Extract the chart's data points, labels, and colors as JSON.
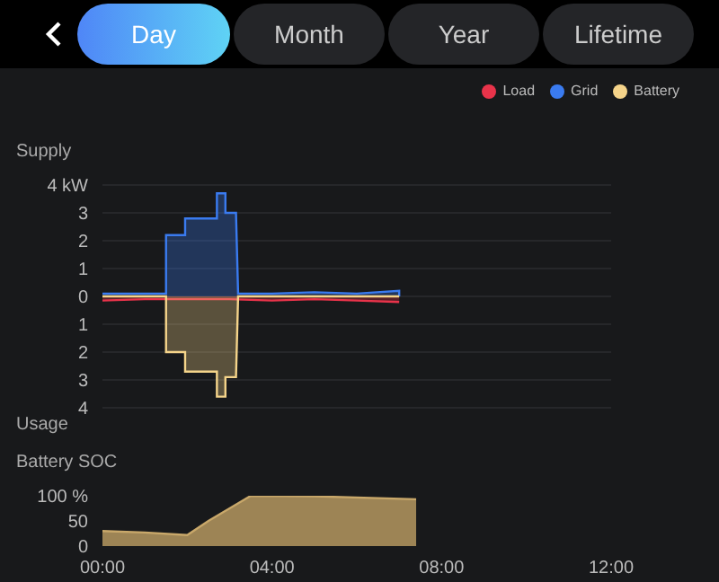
{
  "chart_data": [
    {
      "type": "other",
      "categories": [
        "Day",
        "Month",
        "Year",
        "Lifetime"
      ]
    },
    {
      "type": "area",
      "ylabel": "Supply",
      "annotations": [
        "Usage"
      ],
      "legend": "top right",
      "grid": "y",
      "tick_labels": "y",
      "xlim": [
        0,
        12
      ],
      "ylim": [
        -4,
        4
      ],
      "yticks": [
        {
          "value": -4,
          "label": "4"
        },
        {
          "value": -3,
          "label": "3"
        },
        {
          "value": -2,
          "label": "2"
        },
        {
          "value": -1,
          "label": "1"
        },
        0,
        1,
        2,
        3,
        {
          "value": 4,
          "label": "4 kW"
        }
      ],
      "series": [
        {
          "name": "Load",
          "color": "#e8334a",
          "x": [
            0,
            1,
            2,
            3,
            4,
            5,
            6,
            7
          ],
          "values": [
            -0.15,
            -0.1,
            -0.1,
            -0.1,
            -0.15,
            -0.1,
            -0.15,
            -0.2
          ]
        },
        {
          "name": "Grid",
          "color": "#3a7bf0",
          "x": [
            0,
            0.5,
            1,
            1.5,
            1.5,
            1.95,
            1.95,
            2.7,
            2.7,
            2.9,
            2.9,
            3.15,
            3.2,
            4,
            5,
            6,
            7,
            7
          ],
          "values": [
            0.1,
            0.1,
            0.1,
            0.1,
            2.2,
            2.2,
            2.8,
            2.8,
            3.7,
            3.7,
            3.0,
            3.0,
            0.1,
            0.1,
            0.15,
            0.1,
            0.2,
            0
          ]
        },
        {
          "name": "Battery",
          "color": "#f5d48a",
          "x": [
            0,
            1.5,
            1.5,
            1.95,
            1.95,
            2.7,
            2.7,
            2.9,
            2.9,
            3.15,
            3.2,
            7
          ],
          "values": [
            0,
            0,
            -2.0,
            -2.0,
            -2.7,
            -2.7,
            -3.6,
            -3.6,
            -2.9,
            -2.9,
            0,
            0
          ]
        }
      ]
    },
    {
      "type": "area",
      "ylabel": "Battery SOC",
      "xlim": [
        0,
        12
      ],
      "xticks": [
        {
          "value": 0,
          "label": "00:00"
        },
        {
          "value": 4,
          "label": "04:00"
        },
        {
          "value": 8,
          "label": "08:00"
        },
        {
          "value": 12,
          "label": "12:00"
        }
      ],
      "ylim": [
        0,
        100
      ],
      "yticks": [
        0,
        50,
        {
          "value": 100,
          "label": "100 %"
        }
      ],
      "grid": false,
      "series": [
        {
          "color": "#c9a86a",
          "x": [
            0,
            1,
            2,
            2.5,
            3,
            3.5,
            5,
            7.4
          ],
          "values": [
            30,
            27,
            22,
            50,
            75,
            100,
            99,
            93
          ]
        }
      ]
    }
  ]
}
